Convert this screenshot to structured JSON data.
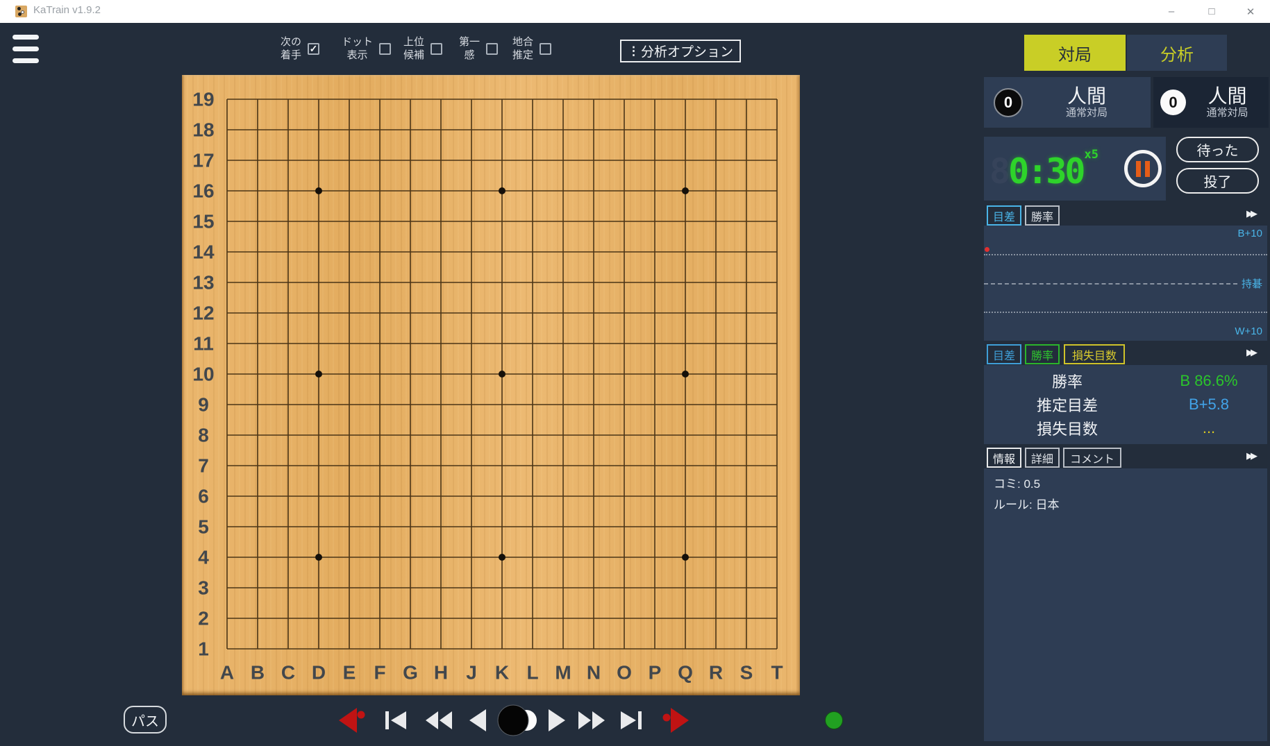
{
  "window": {
    "title": "KaTrain v1.9.2",
    "controls": {
      "minimize": "–",
      "maximize": "□",
      "close": "✕"
    }
  },
  "toolbar": {
    "check_glyph": "✓",
    "options": [
      {
        "line1": "次の",
        "line2": "着手",
        "checked": true
      },
      {
        "line1": "ドット",
        "line2": "表示",
        "checked": false
      },
      {
        "line1": "上位",
        "line2": "候補",
        "checked": false
      },
      {
        "line1": "第一",
        "line2": "感",
        "checked": false
      },
      {
        "line1": "地合",
        "line2": "推定",
        "checked": false
      }
    ],
    "analysis_options": {
      "icon": "⋮",
      "label": "分析オプション"
    }
  },
  "mode_tabs": {
    "play": "対局",
    "analysis": "分析",
    "active": "対局",
    "accent_color": "#c9ce26"
  },
  "players": {
    "black": {
      "captures": "0",
      "name": "人間",
      "subtitle": "通常対局"
    },
    "white": {
      "captures": "0",
      "name": "人間",
      "subtitle": "通常対局"
    }
  },
  "timer": {
    "ghost_digit": "8",
    "time": "0:30",
    "multiplier": "x5",
    "led_color": "#2ed32b",
    "pause_color": "#e55d18"
  },
  "game_buttons": {
    "undo": "待った",
    "resign": "投了"
  },
  "score_graph": {
    "tabs": [
      {
        "label": "目差",
        "active": true
      },
      {
        "label": "勝率",
        "active": false
      }
    ],
    "expand_icon": "▶▶",
    "labels": {
      "top": "B+10",
      "middle": "持碁",
      "bottom": "W+10"
    },
    "label_color": "#4ab5e8",
    "marker_color": "#e03030"
  },
  "stats": {
    "tabs": [
      {
        "label": "目差",
        "color": "#3f9fd8"
      },
      {
        "label": "勝率",
        "color": "#2bb52b"
      },
      {
        "label": "損失目数",
        "color": "#cfc32a"
      }
    ],
    "rows": [
      {
        "label": "勝率",
        "value": "B 86.6%",
        "color": "#2bc52b"
      },
      {
        "label": "推定目差",
        "value": "B+5.8",
        "color": "#42a3e8"
      },
      {
        "label": "損失目数",
        "value": "...",
        "color": "#d9c922"
      }
    ]
  },
  "info": {
    "tabs": [
      {
        "label": "情報",
        "active": true
      },
      {
        "label": "詳細"
      },
      {
        "label": "コメント"
      }
    ],
    "lines": [
      "コミ: 0.5",
      "ルール: 日本"
    ]
  },
  "board": {
    "columns": [
      "A",
      "B",
      "C",
      "D",
      "E",
      "F",
      "G",
      "H",
      "J",
      "K",
      "L",
      "M",
      "N",
      "O",
      "P",
      "Q",
      "R",
      "S",
      "T"
    ],
    "rows": [
      "19",
      "18",
      "17",
      "16",
      "15",
      "14",
      "13",
      "12",
      "11",
      "10",
      "9",
      "8",
      "7",
      "6",
      "5",
      "4",
      "3",
      "2",
      "1"
    ],
    "star_points": [
      "D16",
      "K16",
      "Q16",
      "D10",
      "K10",
      "Q10",
      "D4",
      "K4",
      "Q4"
    ],
    "wood_color": "#e7b369",
    "line_color": "#4a3416"
  },
  "navigation": {
    "pass_label": "パス"
  },
  "status": {
    "engine_dot_color": "#21a021"
  }
}
